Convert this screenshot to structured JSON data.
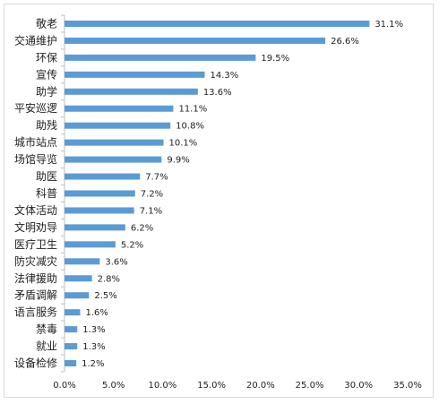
{
  "chart_data": {
    "type": "bar",
    "orientation": "horizontal",
    "title": "",
    "xlabel": "",
    "ylabel": "",
    "categories": [
      "敬老",
      "交通维护",
      "环保",
      "宣传",
      "助学",
      "平安巡逻",
      "助残",
      "城市站点",
      "场馆导览",
      "助医",
      "科普",
      "文体活动",
      "文明劝导",
      "医疗卫生",
      "防灾减灾",
      "法律援助",
      "矛盾调解",
      "语言服务",
      "禁毒",
      "就业",
      "设备检修"
    ],
    "values": [
      31.1,
      26.6,
      19.5,
      14.3,
      13.6,
      11.1,
      10.8,
      10.1,
      9.9,
      7.7,
      7.2,
      7.1,
      6.2,
      5.2,
      3.6,
      2.8,
      2.5,
      1.6,
      1.3,
      1.3,
      1.2
    ],
    "value_labels": [
      "31.1%",
      "26.6%",
      "19.5%",
      "14.3%",
      "13.6%",
      "11.1%",
      "10.8%",
      "10.1%",
      "9.9%",
      "7.7%",
      "7.2%",
      "7.1%",
      "6.2%",
      "5.2%",
      "3.6%",
      "2.8%",
      "2.5%",
      "1.6%",
      "1.3%",
      "1.3%",
      "1.2%"
    ],
    "xlim": [
      0,
      35
    ],
    "x_ticks": [
      "0.0%",
      "5.0%",
      "10.0%",
      "15.0%",
      "20.0%",
      "25.0%",
      "30.0%",
      "35.0%"
    ],
    "grid": false,
    "legend": "none",
    "bar_color": "#5b9bd5"
  }
}
